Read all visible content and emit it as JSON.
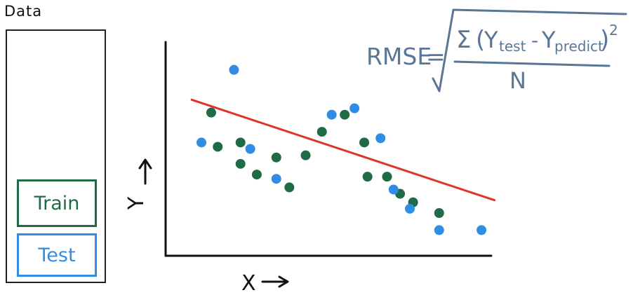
{
  "data_panel": {
    "title": "Data",
    "train_label": "Train",
    "test_label": "Test"
  },
  "plot": {
    "x_label": "X",
    "y_label": "Y"
  },
  "formula": {
    "lhs": "RMSE",
    "sum_symbol": "Σ",
    "y": "Y",
    "sub_test": "test",
    "sub_predict": "predict",
    "exponent": "2",
    "denominator": "N"
  },
  "colors": {
    "train": "#1f6b45",
    "test": "#2f8de4",
    "fit_line": "#e0332c",
    "formula": "#5a7696",
    "ink": "#111111"
  },
  "chart_data": {
    "type": "scatter",
    "xlim": [
      0,
      10
    ],
    "ylim": [
      0,
      10
    ],
    "series": [
      {
        "name": "Train",
        "points": [
          [
            1.4,
            6.7
          ],
          [
            1.6,
            5.1
          ],
          [
            2.3,
            5.3
          ],
          [
            2.3,
            4.3
          ],
          [
            2.8,
            3.8
          ],
          [
            3.4,
            4.6
          ],
          [
            3.8,
            3.2
          ],
          [
            4.3,
            4.7
          ],
          [
            4.8,
            5.8
          ],
          [
            5.5,
            6.6
          ],
          [
            6.1,
            5.3
          ],
          [
            6.2,
            3.7
          ],
          [
            6.8,
            3.7
          ],
          [
            7.2,
            2.9
          ],
          [
            7.6,
            2.5
          ],
          [
            8.4,
            2.0
          ]
        ],
        "color": "#1f6b45"
      },
      {
        "name": "Test",
        "points": [
          [
            1.1,
            5.3
          ],
          [
            2.1,
            8.7
          ],
          [
            2.6,
            5.0
          ],
          [
            3.4,
            3.6
          ],
          [
            5.1,
            6.6
          ],
          [
            5.8,
            6.9
          ],
          [
            6.6,
            5.5
          ],
          [
            7.0,
            3.1
          ],
          [
            7.5,
            2.2
          ],
          [
            8.4,
            1.2
          ],
          [
            9.7,
            1.2
          ]
        ],
        "color": "#2f8de4"
      }
    ],
    "fit_line": {
      "x": [
        0.8,
        10.1
      ],
      "y": [
        7.3,
        2.6
      ]
    }
  }
}
